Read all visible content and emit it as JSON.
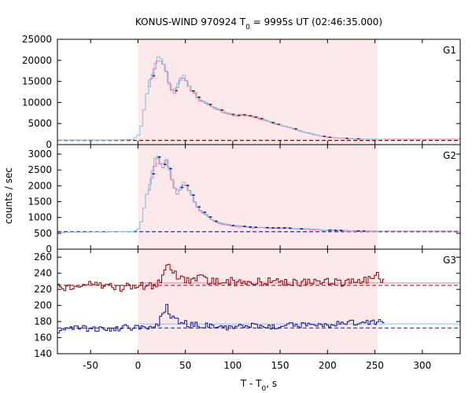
{
  "chart_data": {
    "type": "line",
    "title": "KONUS-WIND 970924 T",
    "title_sub": "0",
    "title_rest": " = 9995s UT (02:46:35.000)",
    "xlabel": "T - T",
    "xlabel_sub": "0",
    "xlabel_rest": ", s",
    "ylabel": "counts / sec",
    "xlim": [
      -85,
      340
    ],
    "x_ticks": [
      -50,
      0,
      50,
      100,
      150,
      200,
      250,
      300
    ],
    "shaded_interval": [
      0,
      253
    ],
    "colors": {
      "shade": "#fde8ea",
      "main": "#7fc8ec",
      "pink": "#e879a8",
      "dark_red": "#8b0000",
      "blue": "#1010a0",
      "bg_dark_red": "#8b0000",
      "bg_blue": "#2020c0"
    },
    "panels": [
      {
        "label": "G1",
        "ylim": [
          0,
          25000
        ],
        "y_ticks": [
          0,
          5000,
          10000,
          15000,
          20000,
          25000
        ],
        "background_level": 1000,
        "background_color": "dark_red",
        "profile": [
          [
            -85,
            1100
          ],
          [
            -40,
            1100
          ],
          [
            -10,
            1150
          ],
          [
            -5,
            1300
          ],
          [
            0,
            2000
          ],
          [
            3,
            3800
          ],
          [
            6,
            7500
          ],
          [
            9,
            11500
          ],
          [
            12,
            15000
          ],
          [
            15,
            16500
          ],
          [
            18,
            19000
          ],
          [
            20,
            20800
          ],
          [
            23,
            20300
          ],
          [
            26,
            20000
          ],
          [
            29,
            18500
          ],
          [
            32,
            15500
          ],
          [
            35,
            13500
          ],
          [
            38,
            12500
          ],
          [
            41,
            13800
          ],
          [
            44,
            15500
          ],
          [
            47,
            16500
          ],
          [
            50,
            16000
          ],
          [
            53,
            14500
          ],
          [
            56,
            13000
          ],
          [
            60,
            12500
          ],
          [
            64,
            11000
          ],
          [
            68,
            10500
          ],
          [
            72,
            10000
          ],
          [
            76,
            9500
          ],
          [
            80,
            9000
          ],
          [
            85,
            8500
          ],
          [
            90,
            8000
          ],
          [
            95,
            7500
          ],
          [
            100,
            7200
          ],
          [
            105,
            7000
          ],
          [
            110,
            7200
          ],
          [
            115,
            7000
          ],
          [
            120,
            6800
          ],
          [
            125,
            6500
          ],
          [
            130,
            6200
          ],
          [
            135,
            5800
          ],
          [
            140,
            5400
          ],
          [
            145,
            5000
          ],
          [
            150,
            4700
          ],
          [
            155,
            4400
          ],
          [
            160,
            4200
          ],
          [
            165,
            3800
          ],
          [
            170,
            3400
          ],
          [
            175,
            3000
          ],
          [
            180,
            2800
          ],
          [
            185,
            2500
          ],
          [
            190,
            2200
          ],
          [
            195,
            2000
          ],
          [
            200,
            1800
          ],
          [
            210,
            1600
          ],
          [
            220,
            1500
          ],
          [
            230,
            1400
          ],
          [
            240,
            1350
          ],
          [
            253,
            1300
          ],
          [
            260,
            1300
          ],
          [
            340,
            1300
          ]
        ]
      },
      {
        "label": "G2",
        "ylim": [
          0,
          3300
        ],
        "y_ticks": [
          0,
          500,
          1000,
          1500,
          2000,
          2500,
          3000
        ],
        "background_level": 550,
        "background_color": "blue",
        "profile": [
          [
            -85,
            530
          ],
          [
            -40,
            540
          ],
          [
            -5,
            560
          ],
          [
            0,
            600
          ],
          [
            3,
            800
          ],
          [
            6,
            1200
          ],
          [
            9,
            1700
          ],
          [
            12,
            2000
          ],
          [
            15,
            2400
          ],
          [
            18,
            2800
          ],
          [
            20,
            3000
          ],
          [
            23,
            2800
          ],
          [
            26,
            2600
          ],
          [
            29,
            2900
          ],
          [
            32,
            2700
          ],
          [
            35,
            2300
          ],
          [
            38,
            2000
          ],
          [
            41,
            1800
          ],
          [
            44,
            1900
          ],
          [
            47,
            2100
          ],
          [
            50,
            2100
          ],
          [
            53,
            1900
          ],
          [
            56,
            1800
          ],
          [
            60,
            1500
          ],
          [
            64,
            1300
          ],
          [
            68,
            1200
          ],
          [
            72,
            1100
          ],
          [
            76,
            1000
          ],
          [
            80,
            900
          ],
          [
            85,
            850
          ],
          [
            90,
            800
          ],
          [
            95,
            780
          ],
          [
            100,
            750
          ],
          [
            110,
            730
          ],
          [
            120,
            700
          ],
          [
            130,
            690
          ],
          [
            140,
            680
          ],
          [
            150,
            680
          ],
          [
            160,
            670
          ],
          [
            170,
            650
          ],
          [
            180,
            640
          ],
          [
            190,
            620
          ],
          [
            200,
            610
          ],
          [
            210,
            600
          ],
          [
            220,
            590
          ],
          [
            230,
            580
          ],
          [
            240,
            575
          ],
          [
            253,
            570
          ],
          [
            260,
            570
          ],
          [
            340,
            570
          ]
        ]
      },
      {
        "label": "G3",
        "ylim": [
          140,
          270
        ],
        "y_ticks": [
          140,
          160,
          180,
          200,
          220,
          240,
          260
        ],
        "series": [
          {
            "color": "dark_red",
            "background_level": 225,
            "profile": [
              [
                -85,
                222
              ],
              [
                -60,
                224
              ],
              [
                -40,
                226
              ],
              [
                -20,
                222
              ],
              [
                0,
                225
              ],
              [
                10,
                225
              ],
              [
                20,
                224
              ],
              [
                25,
                232
              ],
              [
                28,
                245
              ],
              [
                32,
                255
              ],
              [
                38,
                240
              ],
              [
                45,
                232
              ],
              [
                55,
                230
              ],
              [
                65,
                235
              ],
              [
                75,
                228
              ],
              [
                90,
                232
              ],
              [
                100,
                230
              ],
              [
                120,
                228
              ],
              [
                140,
                230
              ],
              [
                160,
                230
              ],
              [
                180,
                228
              ],
              [
                200,
                230
              ],
              [
                220,
                228
              ],
              [
                240,
                232
              ],
              [
                253,
                240
              ],
              [
                260,
                228
              ]
            ],
            "model_level": 228
          },
          {
            "color": "blue",
            "background_level": 172,
            "profile": [
              [
                -85,
                168
              ],
              [
                -60,
                172
              ],
              [
                -40,
                170
              ],
              [
                -20,
                172
              ],
              [
                0,
                173
              ],
              [
                10,
                173
              ],
              [
                20,
                175
              ],
              [
                25,
                185
              ],
              [
                30,
                200
              ],
              [
                35,
                188
              ],
              [
                45,
                180
              ],
              [
                55,
                176
              ],
              [
                70,
                175
              ],
              [
                90,
                172
              ],
              [
                100,
                173
              ],
              [
                120,
                175
              ],
              [
                140,
                174
              ],
              [
                160,
                176
              ],
              [
                180,
                175
              ],
              [
                200,
                176
              ],
              [
                220,
                178
              ],
              [
                240,
                180
              ],
              [
                253,
                180
              ],
              [
                260,
                178
              ]
            ],
            "model_level": 177
          }
        ]
      }
    ]
  }
}
